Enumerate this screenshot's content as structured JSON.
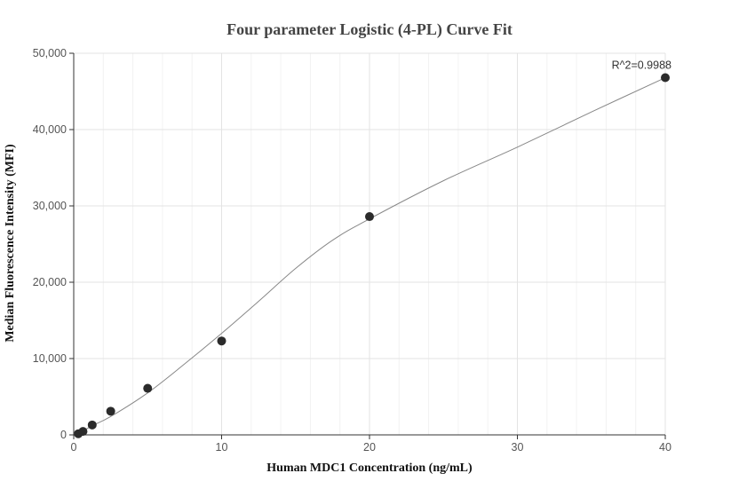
{
  "chart_data": {
    "type": "scatter",
    "title": "Four parameter Logistic (4-PL) Curve Fit",
    "xlabel": "Human MDC1 Concentration (ng/mL)",
    "ylabel": "Median Fluorescence Intensity (MFI)",
    "xlim": [
      0,
      40
    ],
    "ylim": [
      0,
      50000
    ],
    "x_ticks": [
      0,
      10,
      20,
      30,
      40
    ],
    "x_tick_labels": [
      "0",
      "10",
      "20",
      "30",
      "40"
    ],
    "y_ticks": [
      0,
      10000,
      20000,
      30000,
      40000,
      50000
    ],
    "y_tick_labels": [
      "0",
      "10,000",
      "20,000",
      "30,000",
      "40,000",
      "50,000"
    ],
    "grid": true,
    "series": [
      {
        "kind": "points",
        "color": "#2b2b2b",
        "x": [
          0.3125,
          0.625,
          1.25,
          2.5,
          5,
          10,
          20,
          40
        ],
        "y": [
          150,
          450,
          1300,
          3100,
          6100,
          12300,
          28600,
          46800
        ]
      },
      {
        "kind": "fit-curve",
        "color": "#888888",
        "x": [
          0,
          0.3125,
          0.625,
          1.25,
          2.5,
          5,
          7.5,
          10,
          12.5,
          15,
          17.5,
          20,
          25,
          30,
          35,
          40
        ],
        "y": [
          150,
          250,
          500,
          1200,
          2400,
          5500,
          9300,
          13300,
          17500,
          21800,
          25500,
          28300,
          33300,
          37700,
          42300,
          46800
        ]
      }
    ],
    "annotations": [
      {
        "text": "R^2=0.9988",
        "x": 40,
        "y": 46800
      }
    ]
  }
}
